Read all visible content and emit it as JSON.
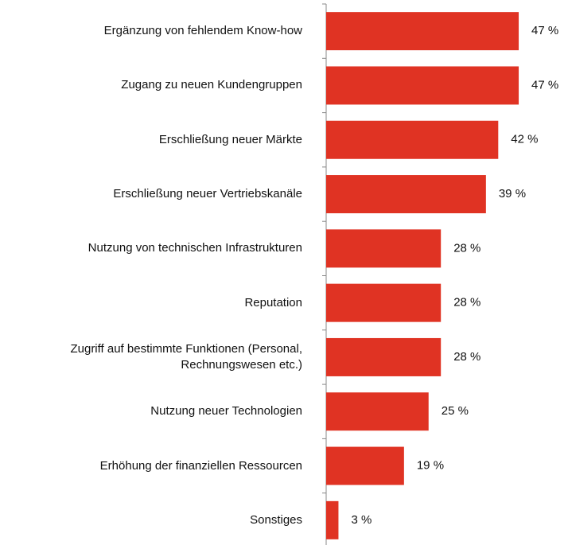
{
  "chart_data": {
    "type": "bar",
    "orientation": "horizontal",
    "categories": [
      "Ergänzung von fehlendem Know-how",
      "Zugang zu neuen Kundengruppen",
      "Erschließung neuer Märkte",
      "Erschließung neuer Vertriebskanäle",
      "Nutzung von technischen Infrastrukturen",
      "Reputation",
      "Zugriff auf bestimmte Funktionen (Personal,\nRechnungswesen etc.)",
      "Nutzung neuer Technologien",
      "Erhöhung der finanziellen Ressourcen",
      "Sonstiges"
    ],
    "values": [
      47,
      47,
      42,
      39,
      28,
      28,
      28,
      25,
      19,
      3
    ],
    "value_labels": [
      "47 %",
      "47 %",
      "42 %",
      "39 %",
      "28 %",
      "28 %",
      "28 %",
      "25 %",
      "19 %",
      "3 %"
    ],
    "color": "#e03323"
  }
}
